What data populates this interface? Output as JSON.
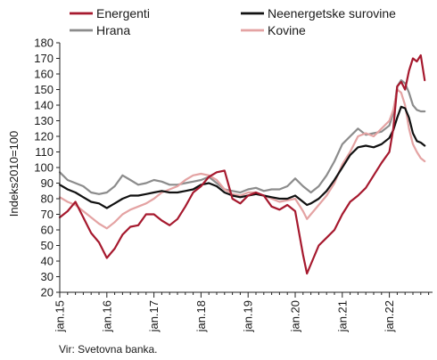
{
  "chart_data": {
    "type": "line",
    "title": "",
    "xlabel": "",
    "ylabel": "Indeks2010=100",
    "ylim": [
      20,
      180
    ],
    "y_ticks": [
      20,
      30,
      40,
      50,
      60,
      70,
      80,
      90,
      100,
      110,
      120,
      130,
      140,
      150,
      160,
      170,
      180
    ],
    "x_ticks": [
      "jan.15",
      "jan.16",
      "jan.17",
      "jan.18",
      "jan.19",
      "jan.20",
      "jan.21",
      "jan.22"
    ],
    "grid": false,
    "legend_position": "top",
    "source": "Vir: Svetovna banka.",
    "months": [
      "2015-01",
      "2015-03",
      "2015-05",
      "2015-07",
      "2015-09",
      "2015-11",
      "2016-01",
      "2016-03",
      "2016-05",
      "2016-07",
      "2016-09",
      "2016-11",
      "2017-01",
      "2017-03",
      "2017-05",
      "2017-07",
      "2017-09",
      "2017-11",
      "2018-01",
      "2018-03",
      "2018-05",
      "2018-07",
      "2018-09",
      "2018-11",
      "2019-01",
      "2019-03",
      "2019-05",
      "2019-07",
      "2019-09",
      "2019-11",
      "2020-01",
      "2020-03",
      "2020-04",
      "2020-05",
      "2020-07",
      "2020-09",
      "2020-11",
      "2021-01",
      "2021-03",
      "2021-05",
      "2021-07",
      "2021-09",
      "2021-11",
      "2022-01",
      "2022-02",
      "2022-03",
      "2022-04",
      "2022-05",
      "2022-06",
      "2022-07",
      "2022-08",
      "2022-09",
      "2022-10"
    ],
    "series": [
      {
        "name": "Energenti",
        "color": "#a6192e",
        "width": 2.2,
        "values": [
          68,
          72,
          78,
          68,
          58,
          52,
          42,
          48,
          57,
          62,
          63,
          70,
          70,
          66,
          63,
          67,
          75,
          84,
          88,
          94,
          97,
          98,
          80,
          77,
          82,
          84,
          82,
          75,
          73,
          76,
          72,
          44,
          32,
          38,
          50,
          55,
          60,
          70,
          78,
          82,
          87,
          95,
          103,
          110,
          125,
          152,
          155,
          150,
          162,
          170,
          168,
          172,
          156
        ]
      },
      {
        "name": "Neenergetske surovine",
        "color": "#111111",
        "width": 2.2,
        "values": [
          89,
          86,
          84,
          81,
          78,
          77,
          74,
          77,
          80,
          82,
          82,
          83,
          84,
          85,
          84,
          84,
          85,
          86,
          89,
          90,
          88,
          84,
          82,
          81,
          82,
          83,
          82,
          81,
          80,
          80,
          82,
          78,
          76,
          77,
          80,
          85,
          92,
          100,
          108,
          113,
          114,
          113,
          115,
          119,
          124,
          132,
          139,
          138,
          132,
          122,
          117,
          116,
          114
        ]
      },
      {
        "name": "Hrana",
        "color": "#8c8c8c",
        "width": 2.2,
        "values": [
          97,
          92,
          90,
          88,
          84,
          83,
          84,
          88,
          95,
          92,
          89,
          90,
          92,
          91,
          89,
          89,
          90,
          91,
          92,
          94,
          90,
          86,
          85,
          84,
          86,
          87,
          85,
          86,
          86,
          88,
          93,
          88,
          86,
          84,
          88,
          95,
          104,
          115,
          120,
          125,
          121,
          122,
          123,
          127,
          135,
          152,
          156,
          154,
          148,
          140,
          137,
          136,
          136
        ]
      },
      {
        "name": "Kovine",
        "color": "#e4a3a3",
        "width": 2.2,
        "values": [
          81,
          78,
          76,
          72,
          68,
          64,
          61,
          65,
          70,
          73,
          75,
          77,
          80,
          84,
          86,
          88,
          92,
          95,
          96,
          95,
          92,
          86,
          83,
          82,
          84,
          84,
          82,
          80,
          78,
          79,
          80,
          72,
          67,
          70,
          76,
          82,
          90,
          102,
          110,
          120,
          122,
          120,
          125,
          130,
          137,
          150,
          148,
          140,
          125,
          115,
          110,
          106,
          104
        ]
      }
    ]
  }
}
